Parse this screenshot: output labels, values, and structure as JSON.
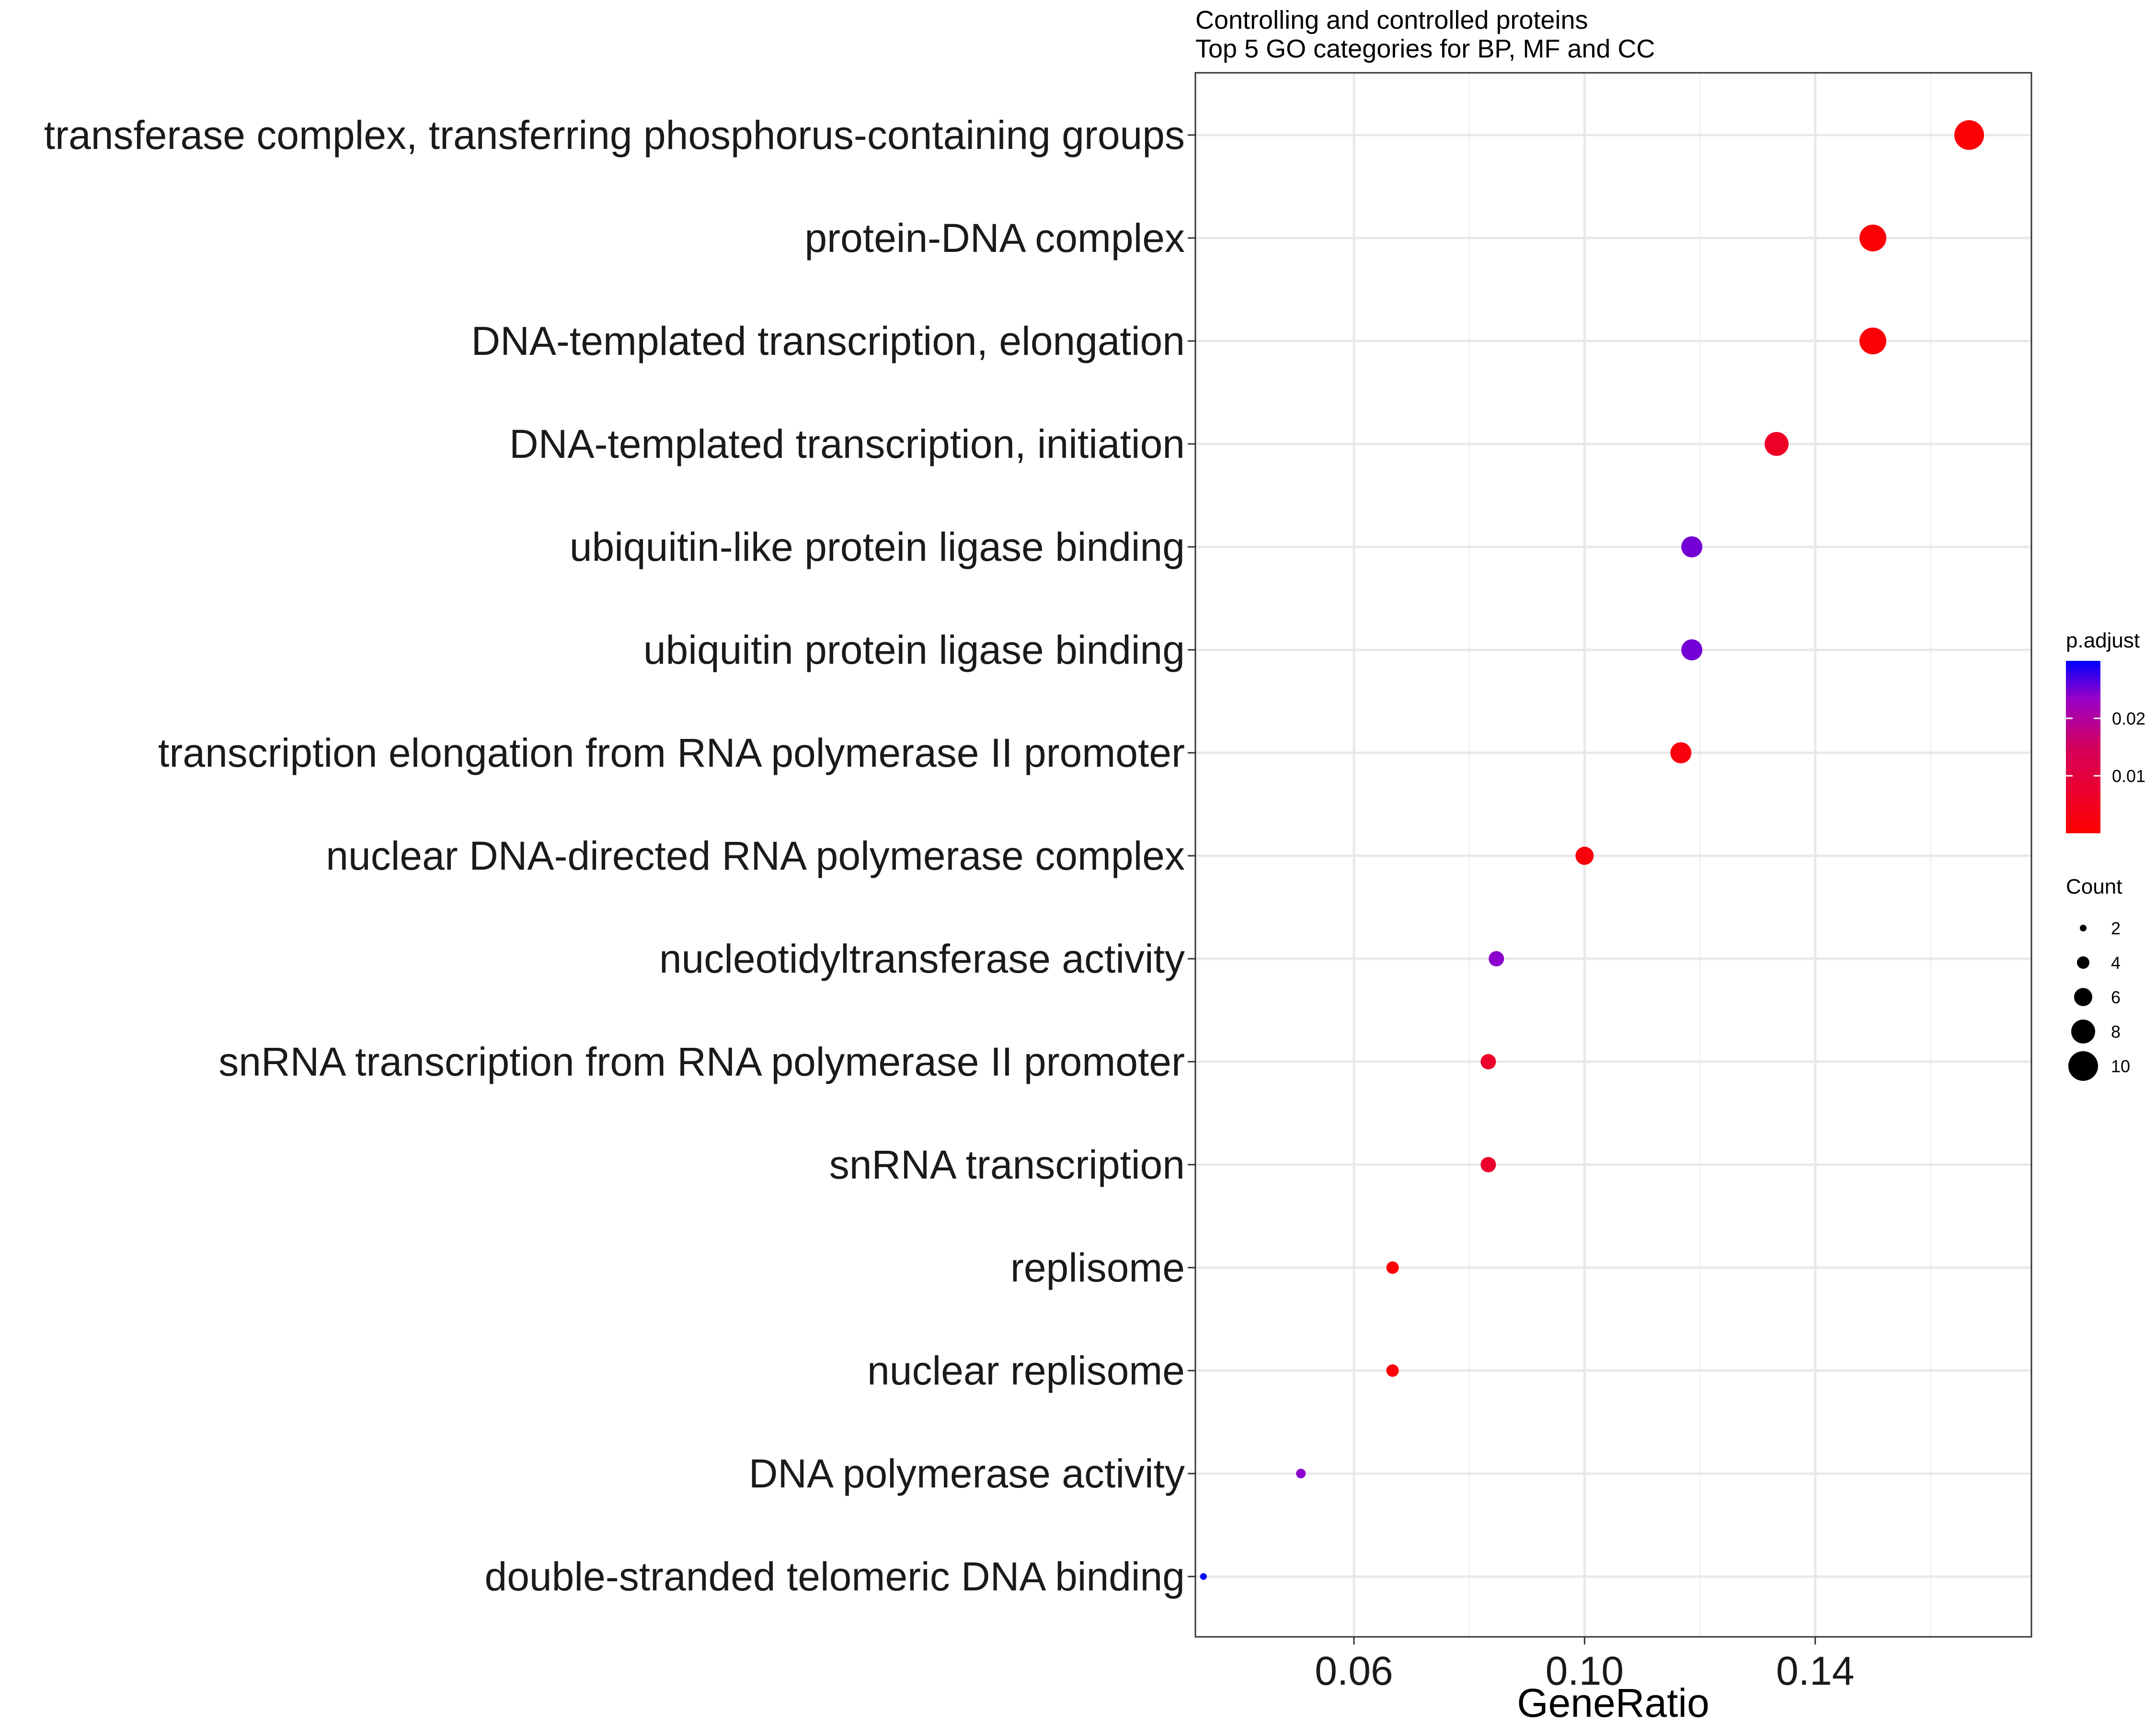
{
  "chart_data": {
    "type": "scatter",
    "title": "Controlling and controlled proteins",
    "subtitle": "Top 5 GO categories for BP, MF and CC",
    "xlabel": "GeneRatio",
    "ylabel": "",
    "xlim": [
      0.0325,
      0.1775
    ],
    "xticks": [
      0.06,
      0.1,
      0.14
    ],
    "xtick_labels": [
      "0.06",
      "0.10",
      "0.14"
    ],
    "x_minor": [
      0.08,
      0.12,
      0.16
    ],
    "grid": true,
    "categories": [
      "transferase complex, transferring phosphorus-containing groups",
      "protein-DNA complex",
      "DNA-templated transcription, elongation",
      "DNA-templated transcription, initiation",
      "ubiquitin-like protein ligase binding",
      "ubiquitin protein ligase binding",
      "transcription elongation from RNA polymerase II promoter",
      "nuclear DNA-directed RNA polymerase complex",
      "nucleotidyltransferase activity",
      "snRNA transcription from RNA polymerase II promoter",
      "snRNA transcription",
      "replisome",
      "nuclear replisome",
      "DNA polymerase activity",
      "double-stranded telomeric DNA binding"
    ],
    "points": [
      {
        "category": "transferase complex, transferring phosphorus-containing groups",
        "x": 0.1667,
        "count": 10,
        "p_adjust": 0.001
      },
      {
        "category": "protein-DNA complex",
        "x": 0.15,
        "count": 9,
        "p_adjust": 0.001
      },
      {
        "category": "DNA-templated transcription, elongation",
        "x": 0.15,
        "count": 9,
        "p_adjust": 0.001
      },
      {
        "category": "DNA-templated transcription, initiation",
        "x": 0.1333,
        "count": 8,
        "p_adjust": 0.006
      },
      {
        "category": "ubiquitin-like protein ligase binding",
        "x": 0.1186,
        "count": 7,
        "p_adjust": 0.025
      },
      {
        "category": "ubiquitin protein ligase binding",
        "x": 0.1186,
        "count": 7,
        "p_adjust": 0.025
      },
      {
        "category": "transcription elongation from RNA polymerase II promoter",
        "x": 0.1167,
        "count": 7,
        "p_adjust": 0.002
      },
      {
        "category": "nuclear DNA-directed RNA polymerase complex",
        "x": 0.1,
        "count": 6,
        "p_adjust": 0.002
      },
      {
        "category": "nucleotidyltransferase activity",
        "x": 0.0847,
        "count": 5,
        "p_adjust": 0.024
      },
      {
        "category": "snRNA transcription from RNA polymerase II promoter",
        "x": 0.0833,
        "count": 5,
        "p_adjust": 0.007
      },
      {
        "category": "snRNA transcription",
        "x": 0.0833,
        "count": 5,
        "p_adjust": 0.007
      },
      {
        "category": "replisome",
        "x": 0.0667,
        "count": 4,
        "p_adjust": 0.001
      },
      {
        "category": "nuclear replisome",
        "x": 0.0667,
        "count": 4,
        "p_adjust": 0.001
      },
      {
        "category": "DNA polymerase activity",
        "x": 0.0508,
        "count": 3,
        "p_adjust": 0.024
      },
      {
        "category": "double-stranded telomeric DNA binding",
        "x": 0.0339,
        "count": 2,
        "p_adjust": 0.03
      }
    ],
    "color_legend": {
      "title": "p.adjust",
      "range": [
        0.0,
        0.03
      ],
      "ticks": [
        0.01,
        0.02
      ],
      "tick_labels": [
        "0.01",
        "0.02"
      ],
      "low_color": "#FF0000",
      "high_color": "#0000FF"
    },
    "size_legend": {
      "title": "Count",
      "values": [
        2,
        4,
        6,
        8,
        10
      ],
      "labels": [
        "2",
        "4",
        "6",
        "8",
        "10"
      ]
    },
    "legend_placement": "right"
  }
}
